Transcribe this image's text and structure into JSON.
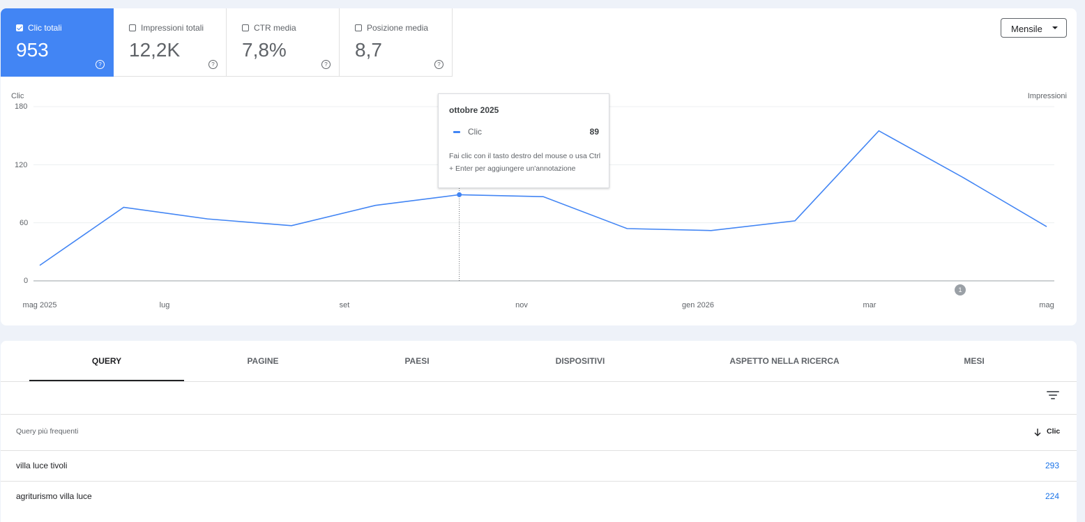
{
  "metrics": [
    {
      "label": "Clic totali",
      "value": "953",
      "active": true
    },
    {
      "label": "Impressioni totali",
      "value": "12,2K",
      "active": false
    },
    {
      "label": "CTR media",
      "value": "7,8%",
      "active": false
    },
    {
      "label": "Posizione media",
      "value": "8,7",
      "active": false
    }
  ],
  "period_selector": {
    "label": "Mensile"
  },
  "chart_data": {
    "type": "line",
    "left_axis_title": "Clic",
    "right_axis_title": "Impressioni",
    "ylim": [
      0,
      180
    ],
    "y_ticks": [
      "180",
      "120",
      "60",
      "0"
    ],
    "x_tick_labels": [
      "mag 2025",
      "lug",
      "set",
      "nov",
      "gen 2026",
      "mar",
      "mag"
    ],
    "grid": true,
    "series": [
      {
        "name": "Clic",
        "color": "#4285f4",
        "x": [
          "mag 2025",
          "giu 2025",
          "lug 2025",
          "ago 2025",
          "set 2025",
          "ott 2025",
          "nov 2025",
          "dic 2025",
          "gen 2026",
          "feb 2026",
          "mar 2026",
          "apr 2026",
          "mag 2026"
        ],
        "values": [
          16,
          76,
          64,
          57,
          78,
          89,
          87,
          54,
          52,
          62,
          155,
          107,
          56
        ]
      }
    ]
  },
  "tooltip": {
    "title": "ottobre 2025",
    "series": "Clic",
    "value": "89",
    "hint": "Fai clic con il tasto destro del mouse o usa Ctrl + Enter per aggiungere un'annotazione"
  },
  "annotation_badge": "1",
  "tabs": [
    "QUERY",
    "PAGINE",
    "PAESI",
    "DISPOSITIVI",
    "ASPETTO NELLA RICERCA",
    "MESI"
  ],
  "table": {
    "col_query": "Query più frequenti",
    "col_clicks": "Clic",
    "rows": [
      {
        "query": "villa luce tivoli",
        "clicks": "293"
      },
      {
        "query": "agriturismo villa luce",
        "clicks": "224"
      }
    ]
  }
}
